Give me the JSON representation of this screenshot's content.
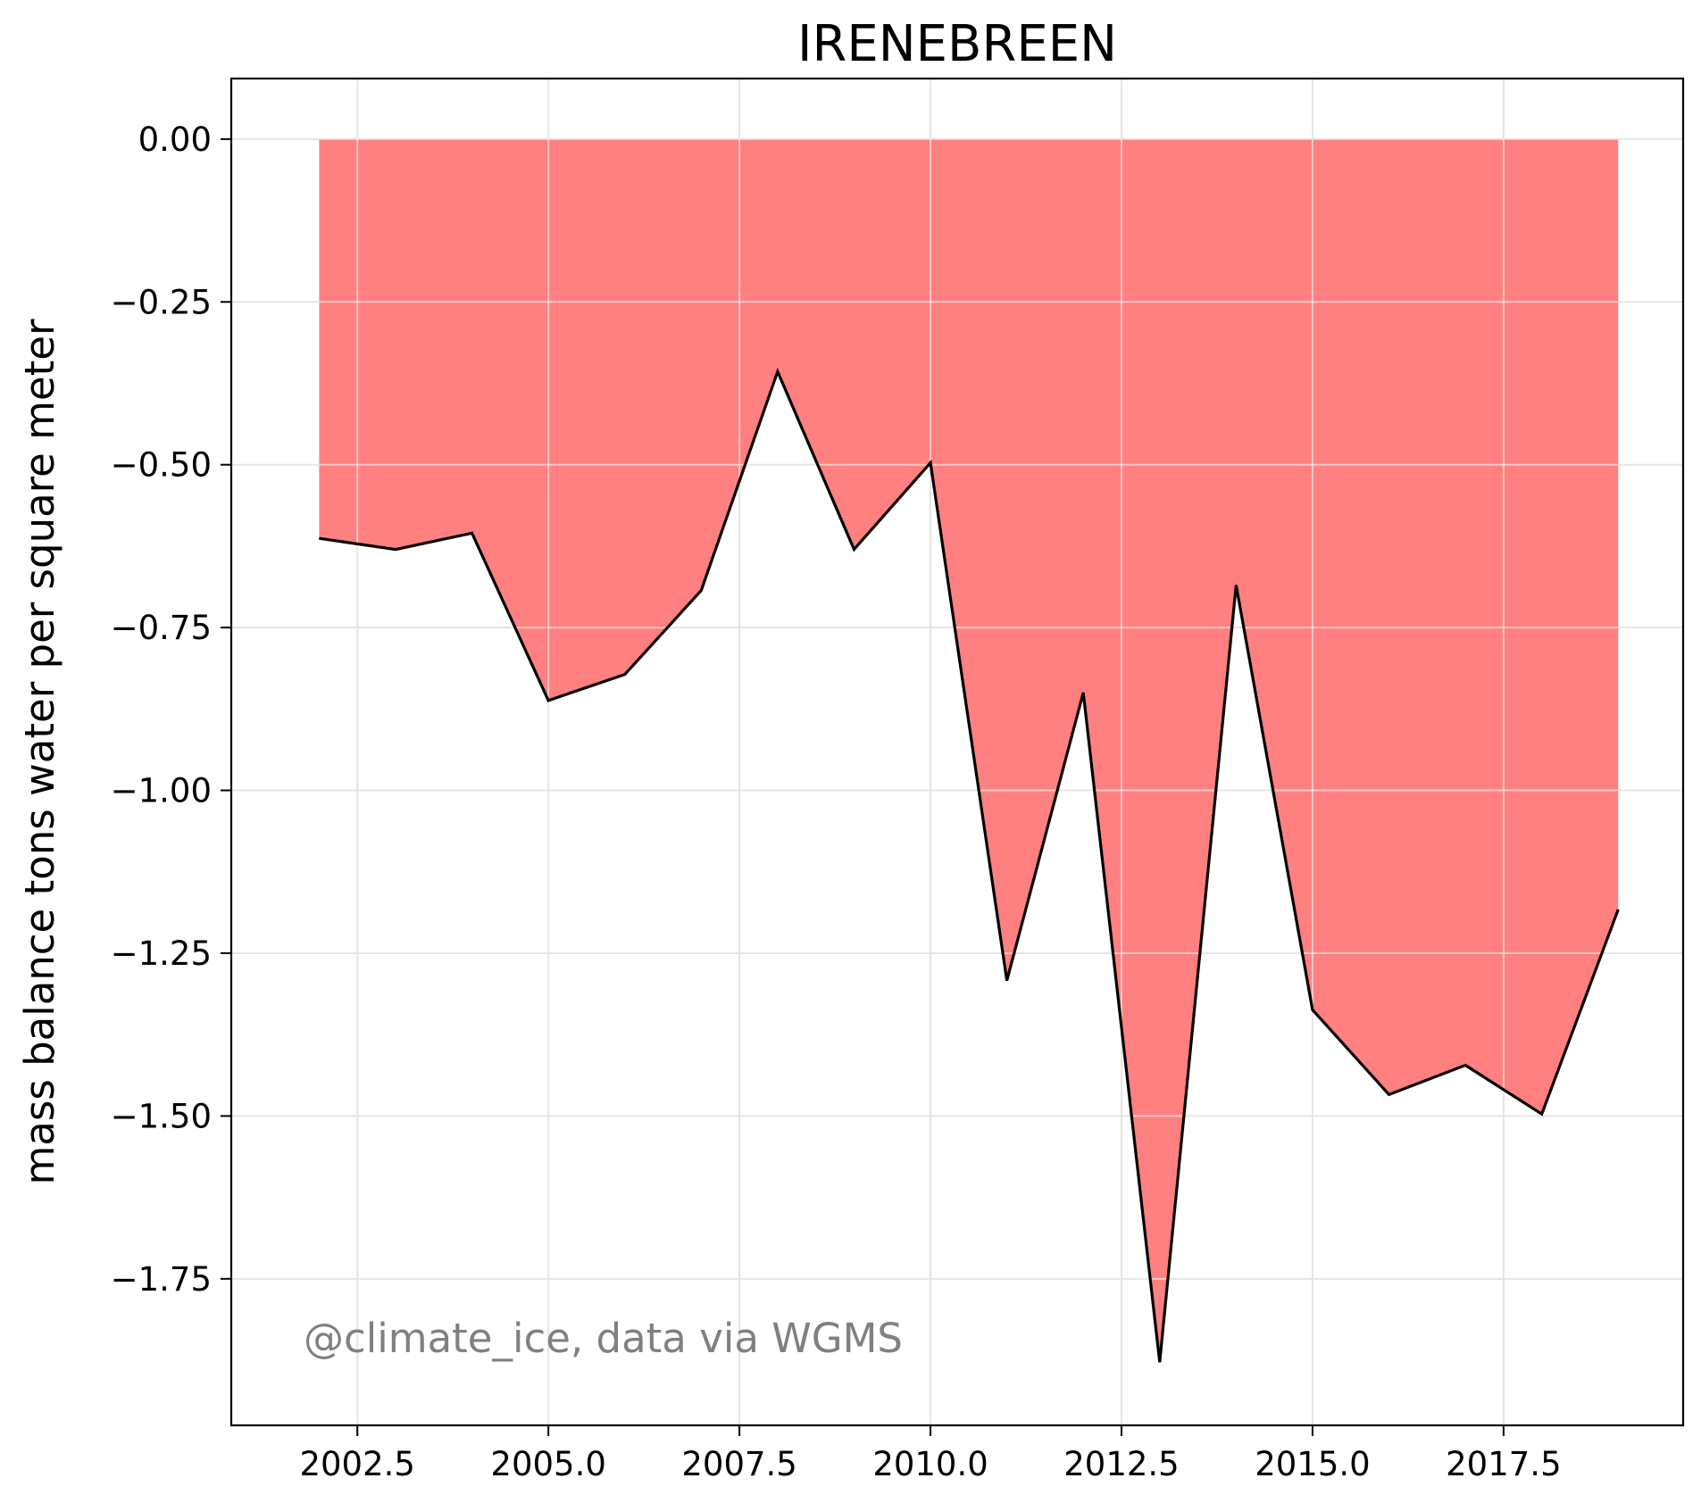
{
  "chart_data": {
    "type": "area",
    "title": "IRENEBREEN",
    "xlabel": "",
    "ylabel": "mass balance tons water per square meter",
    "annotation": "@climate_ice, data via WGMS",
    "x": [
      2002,
      2003,
      2004,
      2005,
      2006,
      2007,
      2008,
      2009,
      2010,
      2011,
      2012,
      2013,
      2014,
      2015,
      2016,
      2017,
      2018,
      2019
    ],
    "series": [
      {
        "values": [
          -0.613,
          -0.63,
          -0.605,
          -0.862,
          -0.822,
          -0.693,
          -0.357,
          -0.63,
          -0.497,
          -1.292,
          -0.85,
          -1.878,
          -0.685,
          -1.337,
          -1.467,
          -1.422,
          -1.497,
          -1.183
        ]
      }
    ],
    "xticks": [
      "2002.5",
      "2005.0",
      "2007.5",
      "2010.0",
      "2012.5",
      "2015.0",
      "2017.5"
    ],
    "xtick_values": [
      2002.5,
      2005.0,
      2007.5,
      2010.0,
      2012.5,
      2015.0,
      2017.5
    ],
    "yticks": [
      "0.00",
      "−0.25",
      "−0.50",
      "−0.75",
      "−1.00",
      "−1.25",
      "−1.50",
      "−1.75"
    ],
    "ytick_values": [
      0.0,
      -0.25,
      -0.5,
      -0.75,
      -1.0,
      -1.25,
      -1.5,
      -1.75
    ],
    "xlim": [
      2000.85,
      2019.85
    ],
    "ylim": [
      -1.975,
      0.093
    ],
    "grid": true,
    "fill_color": "#ff8080",
    "line_color": "#000000"
  }
}
